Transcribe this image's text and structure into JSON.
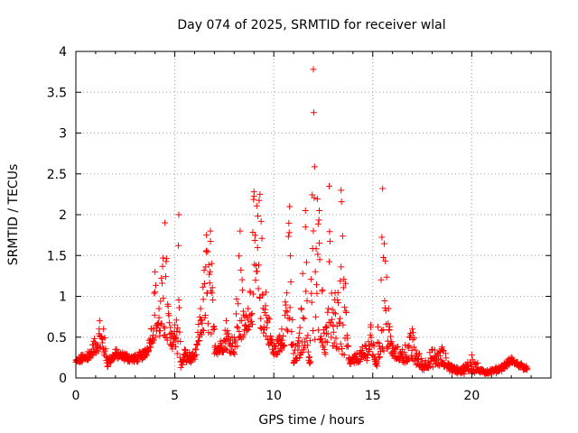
{
  "chart_data": {
    "type": "scatter",
    "title": "Day 074 of 2025, SRMTID for receiver wlal",
    "xlabel": "GPS time / hours",
    "ylabel": "SRMTID / TECUs",
    "xlim": [
      0,
      24
    ],
    "ylim": [
      0,
      4
    ],
    "xticks": [
      0,
      5,
      10,
      15,
      20
    ],
    "xtick_labels": [
      "0",
      "5",
      "10",
      "15",
      "20"
    ],
    "yticks": [
      0,
      0.5,
      1,
      1.5,
      2,
      2.5,
      3,
      3.5,
      4
    ],
    "ytick_labels": [
      "0",
      "0.5",
      "1",
      "1.5",
      "2",
      "2.5",
      "3",
      "3.5",
      "4"
    ],
    "grid": true,
    "marker": "+",
    "series": [
      {
        "name": "SRMTID",
        "color": "#ff0000",
        "envelope": {
          "x": [
            0,
            0.3,
            0.6,
            0.9,
            1.2,
            1.4,
            1.6,
            2.0,
            2.5,
            3.0,
            3.5,
            3.8,
            4.0,
            4.2,
            4.5,
            4.8,
            5.0,
            5.2,
            5.3,
            5.5,
            6.0,
            6.3,
            6.6,
            6.8,
            7.0,
            7.3,
            7.6,
            8.0,
            8.3,
            8.5,
            8.7,
            9.0,
            9.3,
            9.6,
            10.0,
            10.4,
            10.8,
            11.0,
            11.3,
            11.6,
            11.8,
            12.0,
            12.3,
            12.6,
            12.8,
            13.0,
            13.4,
            13.8,
            14.2,
            14.6,
            14.9,
            15.2,
            15.5,
            15.8,
            16.0,
            16.5,
            17.0,
            17.5,
            18.0,
            18.5,
            19.0,
            19.5,
            20.0,
            20.5,
            21.0,
            21.5,
            22.0,
            22.5,
            22.8
          ],
          "y": [
            0.22,
            0.28,
            0.32,
            0.45,
            0.7,
            0.6,
            0.25,
            0.35,
            0.3,
            0.28,
            0.35,
            0.6,
            1.3,
            0.85,
            1.9,
            0.55,
            0.65,
            2.0,
            0.2,
            0.35,
            0.28,
            0.85,
            1.75,
            1.8,
            0.6,
            0.45,
            0.7,
            0.5,
            1.8,
            0.75,
            0.85,
            2.28,
            2.25,
            1.05,
            0.4,
            0.6,
            2.1,
            0.3,
            0.55,
            2.05,
            0.25,
            3.78,
            2.05,
            0.45,
            2.35,
            0.65,
            2.3,
            0.25,
            0.3,
            0.4,
            0.65,
            0.2,
            2.32,
            0.85,
            0.4,
            0.35,
            0.6,
            0.2,
            0.35,
            0.38,
            0.15,
            0.12,
            0.28,
            0.1,
            0.1,
            0.15,
            0.25,
            0.18,
            0.12
          ],
          "base": [
            0.18,
            0.2,
            0.22,
            0.28,
            0.35,
            0.3,
            0.15,
            0.25,
            0.22,
            0.2,
            0.25,
            0.4,
            0.5,
            0.5,
            0.45,
            0.3,
            0.45,
            0.15,
            0.12,
            0.2,
            0.2,
            0.5,
            0.6,
            0.5,
            0.3,
            0.3,
            0.35,
            0.3,
            0.4,
            0.5,
            0.6,
            0.7,
            0.6,
            0.5,
            0.25,
            0.35,
            0.5,
            0.15,
            0.25,
            0.4,
            0.15,
            0.2,
            0.5,
            0.3,
            0.6,
            0.35,
            0.3,
            0.15,
            0.2,
            0.2,
            0.3,
            0.15,
            0.3,
            0.35,
            0.25,
            0.2,
            0.2,
            0.1,
            0.15,
            0.15,
            0.08,
            0.06,
            0.08,
            0.06,
            0.06,
            0.1,
            0.18,
            0.13,
            0.1
          ]
        }
      }
    ]
  }
}
